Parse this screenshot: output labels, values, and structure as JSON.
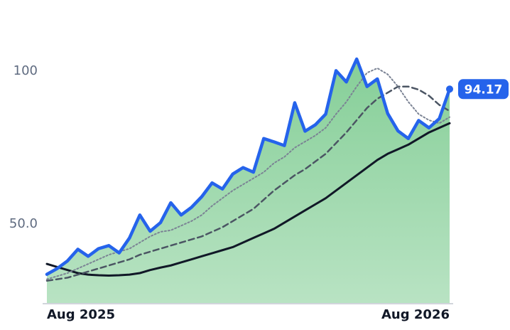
{
  "chart_data": {
    "type": "line",
    "categories": [
      "Aug 2025",
      null,
      null,
      null,
      null,
      null,
      null,
      null,
      null,
      null,
      null,
      null,
      null,
      null,
      null,
      null,
      null,
      null,
      null,
      null,
      null,
      null,
      null,
      null,
      null,
      null,
      null,
      null,
      null,
      null,
      null,
      null,
      null,
      null,
      null,
      null,
      null,
      null,
      null,
      "Aug 2026"
    ],
    "series": [
      {
        "color": "#2563eb",
        "style": "solid",
        "width": 4.5,
        "values": [
          33.6,
          35.5,
          38.0,
          41.8,
          39.5,
          42.0,
          43.0,
          40.6,
          45.5,
          53.0,
          47.7,
          50.5,
          57.0,
          53.0,
          55.5,
          59.0,
          63.5,
          61.5,
          66.4,
          68.5,
          67.0,
          78.0,
          76.9,
          75.7,
          89.7,
          80.4,
          82.5,
          86.0,
          100.2,
          96.5,
          104.0,
          95.0,
          97.5,
          86.2,
          80.5,
          78.0,
          83.9,
          81.5,
          84.5,
          94.17
        ]
      },
      {
        "color": "#7b8394",
        "style": "dotted",
        "width": 2,
        "values": [
          32,
          33,
          34,
          35.5,
          37,
          38.5,
          40,
          41,
          42,
          44,
          46,
          47.5,
          48,
          49.5,
          51,
          53,
          56,
          58.5,
          61,
          63,
          65,
          67,
          70,
          72,
          75,
          77,
          79,
          81.5,
          86,
          90,
          95,
          99.5,
          101,
          99,
          95,
          90,
          86,
          84,
          83,
          85
        ]
      },
      {
        "color": "#4b5563",
        "style": "dashed",
        "width": 2.5,
        "values": [
          31.5,
          32,
          32.5,
          33.5,
          34.5,
          35.5,
          36.5,
          37.5,
          38.5,
          40,
          41,
          42,
          43,
          44,
          45,
          46,
          47.5,
          49,
          51,
          53,
          55,
          58,
          61,
          63.5,
          66,
          68,
          70.5,
          73,
          76.5,
          80,
          84,
          88,
          91,
          93,
          95,
          95,
          94,
          92,
          89,
          87
        ]
      },
      {
        "color": "#111827",
        "style": "solid",
        "width": 3,
        "values": [
          37,
          36,
          35,
          34,
          33.5,
          33.3,
          33.2,
          33.3,
          33.5,
          34,
          35,
          35.8,
          36.5,
          37.5,
          38.5,
          39.5,
          40.5,
          41.5,
          42.5,
          44,
          45.5,
          47,
          48.5,
          50.5,
          52.5,
          54.5,
          56.5,
          58.5,
          61,
          63.5,
          66,
          68.5,
          71,
          73,
          74.5,
          76,
          78,
          80,
          81.5,
          83
        ]
      }
    ],
    "area_color": "#7fcc92",
    "ylim": [
      24,
      114
    ],
    "yticks": [
      {
        "value": 50,
        "label": "50.0"
      },
      100
    ]
  }
}
